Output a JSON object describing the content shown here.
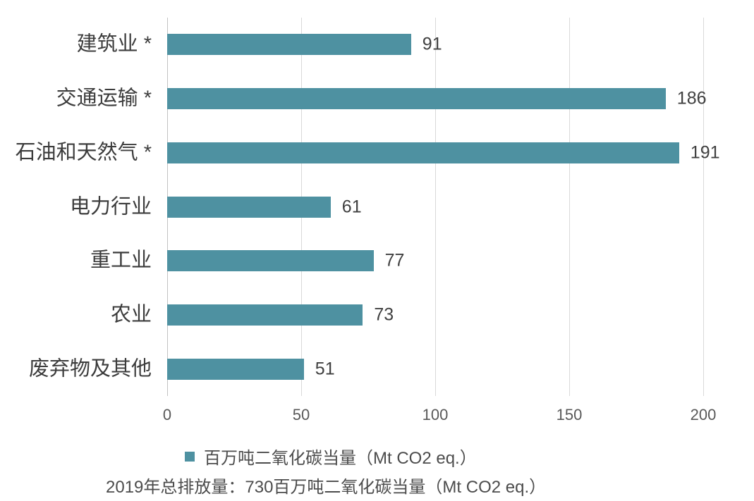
{
  "chart_data": {
    "type": "bar",
    "orientation": "horizontal",
    "title": "",
    "xlabel": "",
    "ylabel": "",
    "categories": [
      "建筑业 *",
      "交通运输 *",
      "石油和天然气 *",
      "电力行业",
      "重工业",
      "农业",
      "废弃物及其他"
    ],
    "values": [
      91,
      186,
      191,
      61,
      77,
      73,
      51
    ],
    "value_labels": [
      "91",
      "186",
      "191",
      "61",
      "77",
      "73",
      "51"
    ],
    "xlim": [
      0,
      200
    ],
    "x_ticks": [
      0,
      50,
      100,
      150,
      200
    ],
    "x_tick_labels": [
      "0",
      "50",
      "100",
      "150",
      "200"
    ],
    "grid": true,
    "legend_position": "bottom",
    "legend": {
      "label": "百万吨二氧化碳当量（Mt CO2 eq.）",
      "swatch_color": "#4e91a1"
    },
    "caption": "2019年总排放量：730百万吨二氧化碳当量（Mt CO2 eq.）",
    "colors": {
      "bar": "#4e91a1",
      "gridline": "#d9d9d9",
      "axis_line": "#c3c3c3",
      "category_text": "#3c3c3c",
      "value_text": "#404040",
      "tick_text": "#595959",
      "legend_caption_text": "#4c4c4c"
    }
  }
}
